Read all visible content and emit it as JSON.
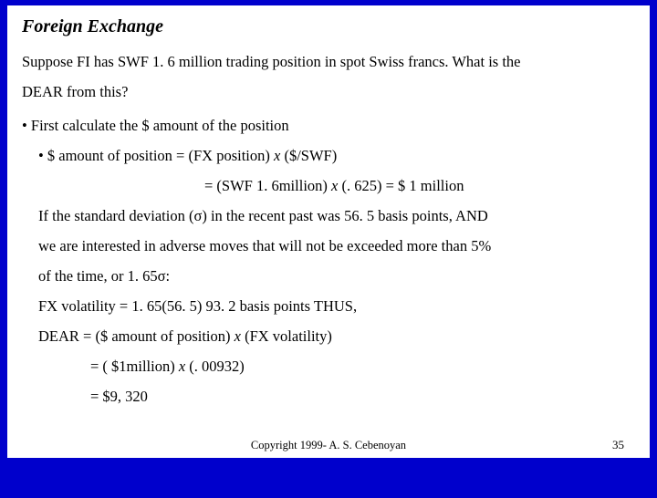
{
  "colors": {
    "background": "#0000cc",
    "content_bg": "#ffffff",
    "text": "#000000"
  },
  "typography": {
    "title_font": "Times New Roman",
    "title_fontsize": 20,
    "title_style": "bold italic",
    "body_fontsize": 16.5,
    "body_lineheight": 2.0,
    "footer_fontsize": 12.5
  },
  "title": "Foreign Exchange",
  "intro_line1": "Suppose FI has SWF 1. 6 million trading position in spot Swiss francs.  What is the",
  "intro_line2": "DEAR from this?",
  "b1": "• First calculate the $ amount of the position",
  "b2_prefix": "• $ amount of position = (FX position) ",
  "b2_x": "x",
  "b2_suffix": " ($/SWF)",
  "eq_prefix": "= (SWF 1. 6million) ",
  "eq_x": "x",
  "eq_suffix": " (. 625) = $ 1 million",
  "body1": "If the standard deviation (σ) in the recent past was 56. 5 basis points, AND",
  "body2": "we are interested in adverse moves that will not be exceeded more than 5%",
  "body3": "of the time, or 1. 65σ:",
  "body4": "FX volatility = 1. 65(56. 5)  93. 2 basis points      THUS,",
  "body5_prefix": "DEAR = ($ amount of position) ",
  "body5_x": "x",
  "body5_suffix": " (FX volatility)",
  "res1_prefix": "= ( $1million) ",
  "res1_x": "x",
  "res1_suffix": " (. 00932)",
  "res2": "= $9, 320",
  "footer": "Copyright 1999- A. S. Cebenoyan",
  "pagenum": "35"
}
